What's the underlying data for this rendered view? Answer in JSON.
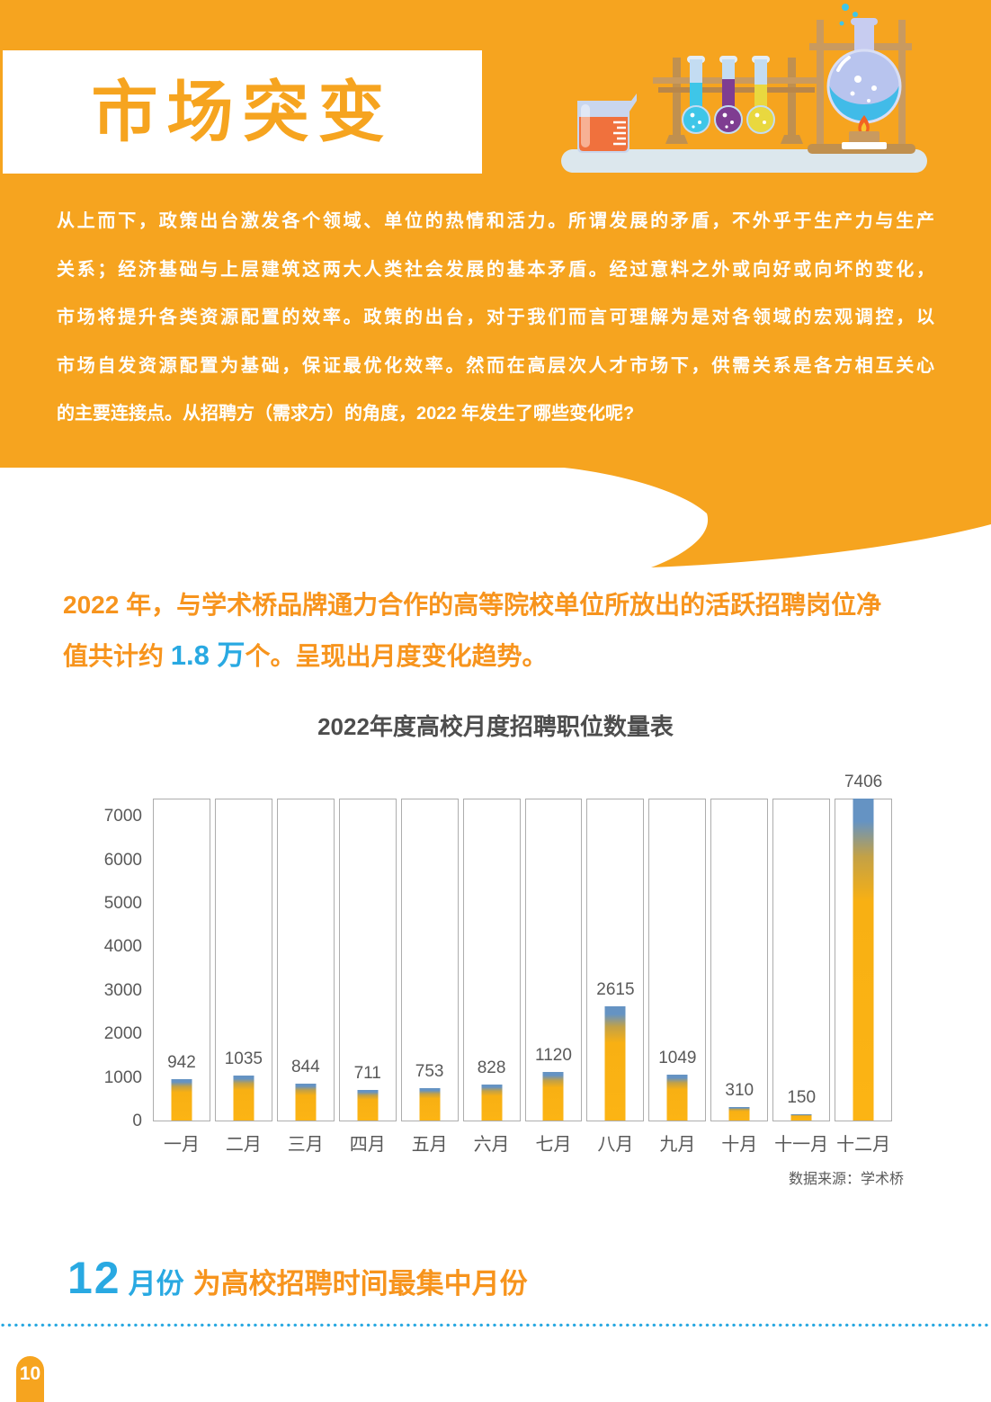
{
  "colors": {
    "accent_orange": "#F6A41F",
    "text_orange": "#F7941D",
    "accent_blue": "#29A9E2",
    "chart_text_gray": "#595959",
    "panel_border": "#ADADAD"
  },
  "hero": {
    "title": "市场突变",
    "intro_lines": [
      "从上而下，政策出台激发各个领域、单位的热情和活力。所谓发展的矛盾，不外乎于生产力与生产",
      "关系；经济基础与上层建筑这两大人类社会发展的基本矛盾。经过意料之外或向好或向坏的变化，",
      "市场将提升各类资源配置的效率。政策的出台，对于我们而言可理解为是对各领域的宏观调控，以",
      "市场自发资源配置为基础，保证最优化效率。然而在高层次人才市场下，供需关系是各方相互关心",
      "的主要连接点。从招聘方（需求方）的角度，2022 年发生了哪些变化呢?"
    ]
  },
  "statement": {
    "line1": "2022 年，与学术桥品牌通力合作的高等院校单位所放出的活跃招聘岗位净",
    "line2_prefix": "值共计约 ",
    "line2_highlight": "1.8 万",
    "line2_suffix": "个。呈现出月度变化趋势。"
  },
  "chart_data": {
    "type": "bar",
    "title": "2022年度高校月度招聘职位数量表",
    "categories": [
      "一月",
      "二月",
      "三月",
      "四月",
      "五月",
      "六月",
      "七月",
      "八月",
      "九月",
      "十月",
      "十一月",
      "十二月"
    ],
    "values": [
      942,
      1035,
      844,
      711,
      753,
      828,
      1120,
      2615,
      1049,
      310,
      150,
      7406
    ],
    "yticks": [
      0,
      1000,
      2000,
      3000,
      4000,
      5000,
      6000,
      7000
    ],
    "ylim": [
      0,
      7420
    ],
    "xlabel": "",
    "ylabel": "",
    "grid": "vertical-column-panels, no horizontal gridlines",
    "legend": "none",
    "bar_color": "#FCB414",
    "bar_cap_color": "#6593C3",
    "source": "数据来源：学术桥"
  },
  "conclusion": {
    "big_number": "12",
    "unit": "月份",
    "text": "为高校招聘时间最集中月份"
  },
  "page": {
    "number": "10"
  }
}
